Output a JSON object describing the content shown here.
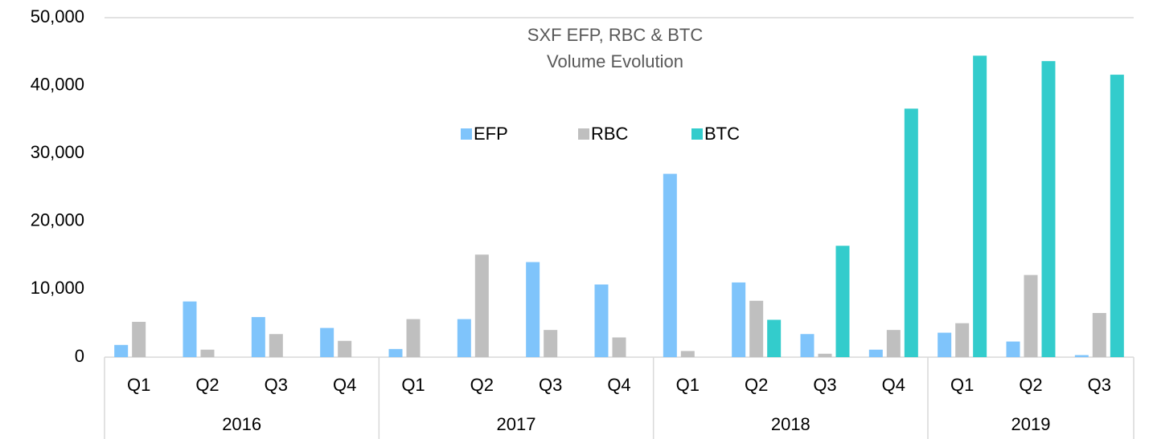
{
  "chart_data": {
    "type": "bar",
    "title": "SXF EFP, RBC & BTC",
    "subtitle": "Volume Evolution",
    "groups": [
      {
        "name": "2016",
        "categories": [
          "Q1",
          "Q2",
          "Q3",
          "Q4"
        ]
      },
      {
        "name": "2017",
        "categories": [
          "Q1",
          "Q2",
          "Q3",
          "Q4"
        ]
      },
      {
        "name": "2018",
        "categories": [
          "Q1",
          "Q2",
          "Q3",
          "Q4"
        ]
      },
      {
        "name": "2019",
        "categories": [
          "Q1",
          "Q2",
          "Q3"
        ]
      }
    ],
    "series": [
      {
        "name": "EFP",
        "color": "#7fc4fb",
        "values": [
          1800,
          8200,
          5900,
          4300,
          1200,
          5600,
          14000,
          10700,
          27000,
          11000,
          3400,
          1100,
          3600,
          2300,
          300
        ]
      },
      {
        "name": "RBC",
        "color": "#bfbfbf",
        "values": [
          5200,
          1100,
          3400,
          2400,
          5600,
          15100,
          4000,
          2900,
          900,
          8300,
          500,
          4000,
          5000,
          12100,
          6500
        ]
      },
      {
        "name": "BTC",
        "color": "#33cccc",
        "values": [
          0,
          0,
          0,
          0,
          0,
          0,
          0,
          0,
          0,
          5500,
          16400,
          36600,
          44400,
          43600,
          41600
        ]
      }
    ],
    "ylim": [
      0,
      50000
    ],
    "yticks": [
      0,
      {
        "value": 10000,
        "label": "10,000"
      },
      {
        "value": 20000,
        "label": "20,000"
      },
      {
        "value": 30000,
        "label": "30,000"
      },
      {
        "value": 40000,
        "label": "40,000"
      },
      {
        "value": 50000,
        "label": "50,000"
      }
    ],
    "grid": false,
    "legend": "top"
  }
}
